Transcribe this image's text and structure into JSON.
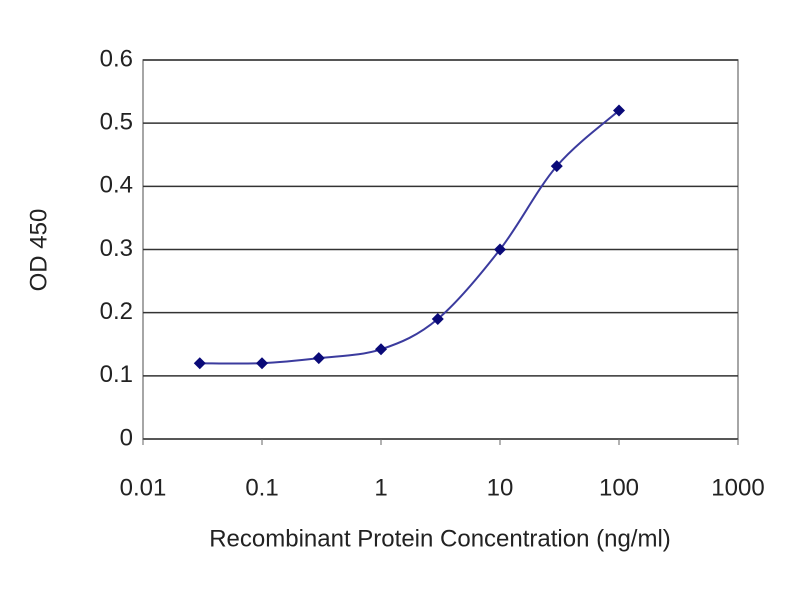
{
  "chart_data": {
    "type": "line",
    "xlabel": "Recombinant Protein Concentration (ng/ml)",
    "ylabel": "OD 450",
    "x": [
      0.03,
      0.1,
      0.3,
      1,
      3,
      10,
      30,
      100
    ],
    "values": [
      0.12,
      0.12,
      0.128,
      0.142,
      0.19,
      0.3,
      0.432,
      0.52
    ],
    "color": "#3b3b9e",
    "marker_color": "#0a0a78",
    "xscale": "log",
    "xlim": [
      0.01,
      1000
    ],
    "xticks": [
      0.01,
      0.1,
      1,
      10,
      100,
      1000
    ],
    "ylim": [
      0,
      0.6
    ],
    "yticks": [
      0,
      0.1,
      0.2,
      0.3,
      0.4,
      0.5,
      0.6
    ],
    "grid": true
  }
}
